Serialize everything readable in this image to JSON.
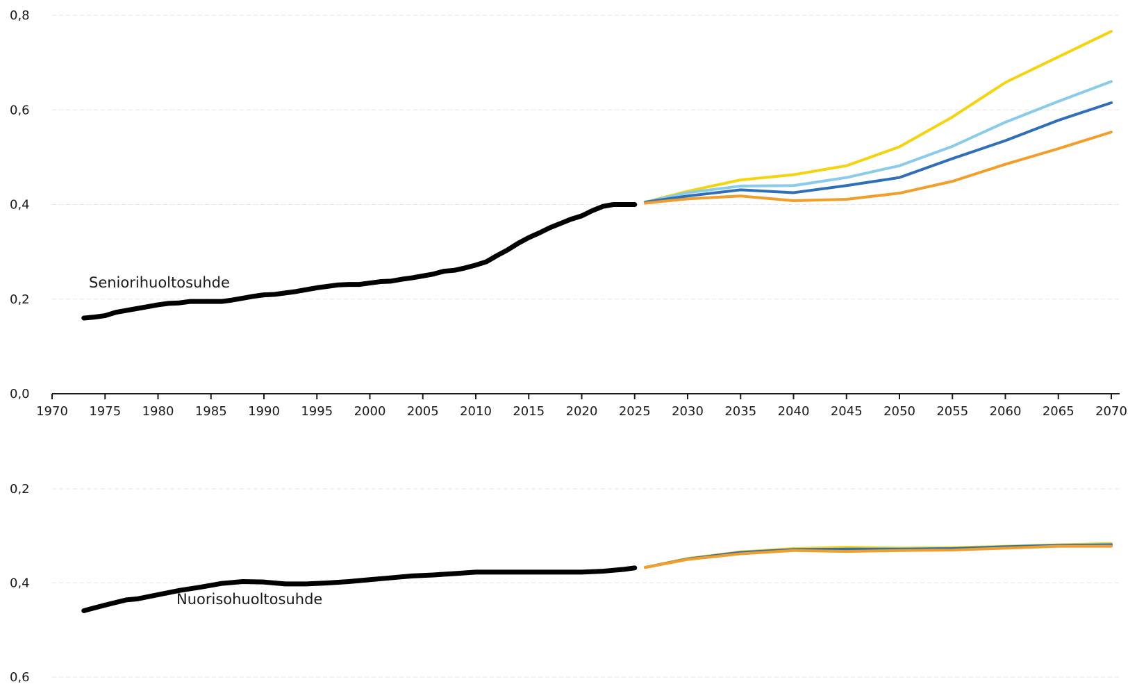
{
  "chart_data": [
    {
      "type": "line",
      "title": "",
      "xlabel": "",
      "ylabel": "",
      "xlim": [
        1970,
        2070
      ],
      "ylim": [
        0,
        0.8
      ],
      "y_ticks": [
        "0,0",
        "0,2",
        "0,4",
        "0,6",
        "0,8"
      ],
      "y_tick_values": [
        0,
        0.2,
        0.4,
        0.6,
        0.8
      ],
      "x_ticks": [
        "1970",
        "1975",
        "1980",
        "1985",
        "1990",
        "1995",
        "2000",
        "2005",
        "2010",
        "2015",
        "2020",
        "2025",
        "2030",
        "2035",
        "2040",
        "2045",
        "2050",
        "2055",
        "2060",
        "2065",
        "2070"
      ],
      "x_tick_values": [
        1970,
        1975,
        1980,
        1985,
        1990,
        1995,
        2000,
        2005,
        2010,
        2015,
        2020,
        2025,
        2030,
        2035,
        2040,
        2045,
        2050,
        2055,
        2060,
        2065,
        2070
      ],
      "grid": true,
      "annotation": "Seniorihuoltosuhde",
      "series": [
        {
          "color": "#000000",
          "x": [
            1973,
            1974,
            1975,
            1976,
            1977,
            1978,
            1979,
            1980,
            1981,
            1982,
            1983,
            1984,
            1985,
            1986,
            1987,
            1988,
            1989,
            1990,
            1991,
            1992,
            1993,
            1994,
            1995,
            1996,
            1997,
            1998,
            1999,
            2000,
            2001,
            2002,
            2003,
            2004,
            2005,
            2006,
            2007,
            2008,
            2009,
            2010,
            2011,
            2012,
            2013,
            2014,
            2015,
            2016,
            2017,
            2018,
            2019,
            2020,
            2021,
            2022,
            2023,
            2024,
            2025
          ],
          "y": [
            0.16,
            0.162,
            0.165,
            0.172,
            0.176,
            0.18,
            0.184,
            0.188,
            0.191,
            0.192,
            0.195,
            0.195,
            0.195,
            0.195,
            0.198,
            0.202,
            0.206,
            0.209,
            0.21,
            0.213,
            0.216,
            0.22,
            0.224,
            0.227,
            0.23,
            0.231,
            0.231,
            0.234,
            0.237,
            0.238,
            0.242,
            0.245,
            0.249,
            0.253,
            0.259,
            0.261,
            0.266,
            0.272,
            0.279,
            0.292,
            0.304,
            0.318,
            0.33,
            0.34,
            0.351,
            0.36,
            0.369,
            0.376,
            0.387,
            0.396,
            0.4,
            0.4,
            0.4
          ]
        },
        {
          "color": "#f5d40f",
          "x": [
            2026,
            2030,
            2035,
            2040,
            2045,
            2050,
            2055,
            2060,
            2065,
            2070
          ],
          "y": [
            0.405,
            0.428,
            0.452,
            0.463,
            0.482,
            0.522,
            0.585,
            0.658,
            0.712,
            0.766
          ]
        },
        {
          "color": "#89cbe9",
          "x": [
            2026,
            2030,
            2035,
            2040,
            2045,
            2050,
            2055,
            2060,
            2065,
            2070
          ],
          "y": [
            0.405,
            0.425,
            0.439,
            0.44,
            0.457,
            0.482,
            0.523,
            0.574,
            0.618,
            0.66
          ]
        },
        {
          "color": "#2f6fb7",
          "x": [
            2026,
            2030,
            2035,
            2040,
            2045,
            2050,
            2055,
            2060,
            2065,
            2070
          ],
          "y": [
            0.405,
            0.418,
            0.431,
            0.425,
            0.44,
            0.457,
            0.497,
            0.535,
            0.578,
            0.615
          ]
        },
        {
          "color": "#f29e2a",
          "x": [
            2026,
            2030,
            2035,
            2040,
            2045,
            2050,
            2055,
            2060,
            2065,
            2070
          ],
          "y": [
            0.403,
            0.412,
            0.418,
            0.408,
            0.411,
            0.424,
            0.449,
            0.485,
            0.518,
            0.553
          ]
        }
      ]
    },
    {
      "type": "line",
      "title": "",
      "xlabel": "",
      "ylabel": "",
      "xlim": [
        1970,
        2070
      ],
      "ylim": [
        0.6,
        0.2
      ],
      "y_axis_inverted": true,
      "y_ticks": [
        "0,2",
        "0,4",
        "0,6"
      ],
      "y_tick_values": [
        0.2,
        0.4,
        0.6
      ],
      "grid": true,
      "annotation": "Nuorisohuoltosuhde",
      "series": [
        {
          "color": "#000000",
          "x": [
            1973,
            1975,
            1977,
            1978,
            1980,
            1982,
            1984,
            1986,
            1988,
            1990,
            1992,
            1994,
            1996,
            1998,
            2000,
            2002,
            2004,
            2006,
            2008,
            2010,
            2012,
            2014,
            2016,
            2018,
            2020,
            2022,
            2024,
            2025
          ],
          "y": [
            0.459,
            0.447,
            0.436,
            0.434,
            0.425,
            0.416,
            0.409,
            0.401,
            0.397,
            0.398,
            0.402,
            0.402,
            0.4,
            0.397,
            0.393,
            0.389,
            0.385,
            0.383,
            0.38,
            0.377,
            0.377,
            0.377,
            0.377,
            0.377,
            0.377,
            0.375,
            0.371,
            0.368
          ]
        },
        {
          "color": "#f5d40f",
          "x": [
            2026,
            2030,
            2035,
            2040,
            2045,
            2050,
            2055,
            2060,
            2065,
            2070
          ],
          "y": [
            0.367,
            0.348,
            0.334,
            0.327,
            0.324,
            0.326,
            0.325,
            0.322,
            0.319,
            0.316
          ]
        },
        {
          "color": "#89cbe9",
          "x": [
            2026,
            2030,
            2035,
            2040,
            2045,
            2050,
            2055,
            2060,
            2065,
            2070
          ],
          "y": [
            0.367,
            0.349,
            0.336,
            0.33,
            0.328,
            0.328,
            0.327,
            0.324,
            0.321,
            0.318
          ]
        },
        {
          "color": "#2f6fb7",
          "x": [
            2026,
            2030,
            2035,
            2040,
            2045,
            2050,
            2055,
            2060,
            2065,
            2070
          ],
          "y": [
            0.367,
            0.349,
            0.335,
            0.329,
            0.328,
            0.328,
            0.327,
            0.323,
            0.32,
            0.319
          ]
        },
        {
          "color": "#f29e2a",
          "x": [
            2026,
            2030,
            2035,
            2040,
            2045,
            2050,
            2055,
            2060,
            2065,
            2070
          ],
          "y": [
            0.367,
            0.35,
            0.338,
            0.331,
            0.333,
            0.331,
            0.33,
            0.326,
            0.322,
            0.322
          ]
        }
      ]
    }
  ]
}
